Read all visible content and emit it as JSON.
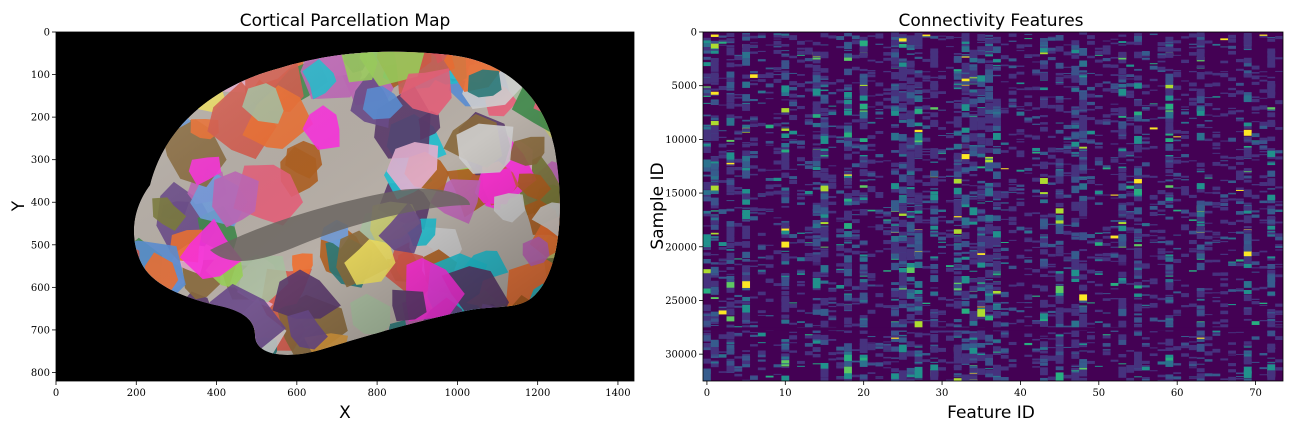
{
  "chart_data": [
    {
      "type": "image",
      "title": "Cortical Parcellation Map",
      "xlabel": "X",
      "ylabel": "Y",
      "xlim": [
        0,
        1440
      ],
      "ylim": [
        820,
        0
      ],
      "x_ticks": [
        "0",
        "200",
        "400",
        "600",
        "800",
        "1000",
        "1200",
        "1400"
      ],
      "y_ticks": [
        "0",
        "100",
        "200",
        "300",
        "400",
        "500",
        "600",
        "700",
        "800"
      ],
      "background": "#000000",
      "parcel_colors": [
        "#e8607a",
        "#7b7b3a",
        "#6a4a8a",
        "#3f8a4a",
        "#d99a3c",
        "#c066b8",
        "#5a8fd6",
        "#d65a4a",
        "#8a6a3c",
        "#a8c0a0",
        "#e6b0d0",
        "#9ad05a",
        "#2a7a7a",
        "#c8c870",
        "#5a3a6a",
        "#f0e060",
        "#ff30e0",
        "#20c0d0",
        "#b06020",
        "#70a0e0",
        "#d0d0d0",
        "#f07030"
      ]
    },
    {
      "type": "heatmap",
      "title": "Connectivity Features",
      "xlabel": "Feature ID",
      "ylabel": "Sample ID",
      "xlim": [
        0,
        74
      ],
      "ylim": [
        32500,
        0
      ],
      "x_ticks": [
        "0",
        "10",
        "20",
        "30",
        "40",
        "50",
        "60",
        "70"
      ],
      "y_ticks": [
        "0",
        "5000",
        "10000",
        "15000",
        "20000",
        "25000",
        "30000"
      ],
      "colormap": "viridis",
      "background_value_color": "#440154",
      "dense_feature_columns": [
        0,
        1,
        3,
        5,
        10,
        14,
        15,
        18,
        20,
        24,
        25,
        26,
        27,
        29,
        32,
        33,
        34,
        35,
        36,
        37,
        43,
        45,
        47,
        48,
        53,
        55,
        59,
        63,
        69,
        72
      ],
      "gap_rows": [
        27500,
        27800
      ]
    }
  ]
}
